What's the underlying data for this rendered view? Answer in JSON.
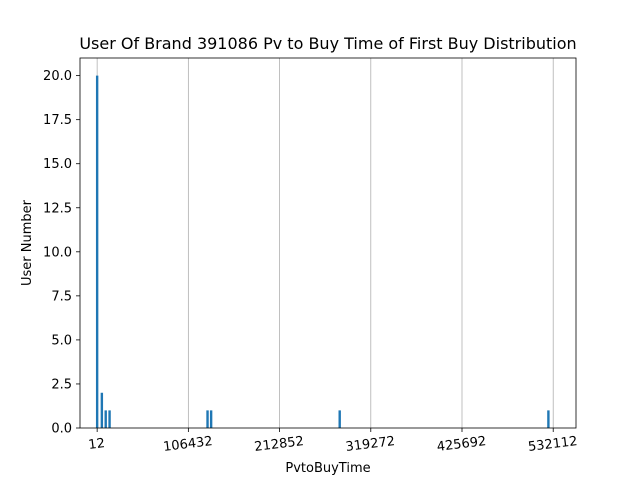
{
  "chart_data": {
    "type": "bar",
    "title": "User Of Brand 391086 Pv to Buy Time of First Buy Distribution",
    "xlabel": "PvtoBuyTime",
    "ylabel": "User Number",
    "xlim": [
      -20000,
      558700
    ],
    "ylim": [
      0,
      21
    ],
    "grid": "vertical",
    "bar_color": "#1f77b4",
    "grid_color": "#b0b0b0",
    "x_ticks": [
      12,
      106432,
      212852,
      319272,
      425692,
      532112
    ],
    "x_tick_labels": [
      "12",
      "106432",
      "212852",
      "319272",
      "425692",
      "532112"
    ],
    "x_tick_rotation_deg": -7,
    "y_ticks": [
      0,
      2.5,
      5,
      7.5,
      10,
      12.5,
      15,
      17.5,
      20
    ],
    "y_tick_labels": [
      "0.0",
      "2.5",
      "5.0",
      "7.5",
      "10.0",
      "12.5",
      "15.0",
      "17.5",
      "20.0"
    ],
    "bar_width": 2800,
    "bars": [
      {
        "x": 12,
        "value": 20
      },
      {
        "x": 5500,
        "value": 2
      },
      {
        "x": 10000,
        "value": 1
      },
      {
        "x": 14500,
        "value": 1
      },
      {
        "x": 128800,
        "value": 1
      },
      {
        "x": 133000,
        "value": 1
      },
      {
        "x": 283000,
        "value": 1
      },
      {
        "x": 526500,
        "value": 1
      }
    ]
  }
}
